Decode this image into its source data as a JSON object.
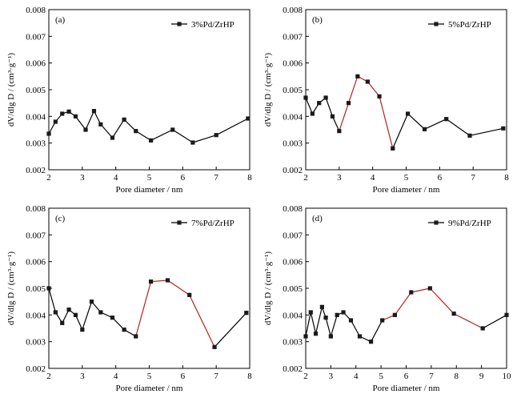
{
  "chart_data": [
    {
      "type": "line",
      "panel_label": "(a)",
      "xlabel": "Pore diameter / nm",
      "ylabel": "dV/dlg D / (cm³·g⁻¹)",
      "xlim": [
        2,
        8
      ],
      "ylim": [
        0.002,
        0.008
      ],
      "xticks": [
        2,
        3,
        4,
        5,
        6,
        7,
        8
      ],
      "yticks": [
        "0.002",
        "0.003",
        "0.004",
        "0.005",
        "0.006",
        "0.007",
        "0.008"
      ],
      "legend_position": "top-right",
      "series": [
        {
          "name": "3%Pd/ZrHP",
          "x": [
            2.0,
            2.2,
            2.4,
            2.6,
            2.8,
            3.1,
            3.35,
            3.55,
            3.9,
            4.25,
            4.6,
            5.05,
            5.7,
            6.3,
            7.0,
            7.95
          ],
          "y": [
            0.00335,
            0.0038,
            0.0041,
            0.00418,
            0.004,
            0.0035,
            0.0042,
            0.0037,
            0.0032,
            0.00388,
            0.00345,
            0.0031,
            0.0035,
            0.00302,
            0.0033,
            0.00392
          ],
          "highlight_x": []
        }
      ]
    },
    {
      "type": "line",
      "panel_label": "(b)",
      "xlabel": "Pore diameter / nm",
      "ylabel": "dV/dlg D / (cm³·g⁻¹)",
      "xlim": [
        2,
        8
      ],
      "ylim": [
        0.002,
        0.008
      ],
      "xticks": [
        2,
        3,
        4,
        5,
        6,
        7,
        8
      ],
      "yticks": [
        "0.002",
        "0.003",
        "0.004",
        "0.005",
        "0.006",
        "0.007",
        "0.008"
      ],
      "legend_position": "top-right",
      "series": [
        {
          "name": "5%Pd/ZrHP",
          "x": [
            2.0,
            2.2,
            2.4,
            2.6,
            2.8,
            3.0,
            3.28,
            3.55,
            3.85,
            4.2,
            4.6,
            5.05,
            5.55,
            6.2,
            6.9,
            7.9
          ],
          "y": [
            0.0047,
            0.0041,
            0.0045,
            0.0047,
            0.004,
            0.00345,
            0.0045,
            0.0055,
            0.0053,
            0.00475,
            0.0028,
            0.0041,
            0.00352,
            0.0039,
            0.00328,
            0.00355
          ],
          "highlight_x": [
            3.0,
            4.6
          ]
        }
      ]
    },
    {
      "type": "line",
      "panel_label": "(c)",
      "xlabel": "Pore diameter / nm",
      "ylabel": "dV/dlg D / (cm³·g⁻¹)",
      "xlim": [
        2,
        8
      ],
      "ylim": [
        0.002,
        0.008
      ],
      "xticks": [
        2,
        3,
        4,
        5,
        6,
        7,
        8
      ],
      "yticks": [
        "0.002",
        "0.003",
        "0.004",
        "0.005",
        "0.006",
        "0.007",
        "0.008"
      ],
      "legend_position": "top-right",
      "series": [
        {
          "name": "7%Pd/ZrHP",
          "x": [
            2.0,
            2.2,
            2.4,
            2.6,
            2.8,
            3.0,
            3.28,
            3.55,
            3.9,
            4.25,
            4.6,
            5.05,
            5.55,
            6.2,
            6.95,
            7.9
          ],
          "y": [
            0.005,
            0.0041,
            0.0037,
            0.0042,
            0.004,
            0.00345,
            0.0045,
            0.0041,
            0.0039,
            0.00345,
            0.0032,
            0.00525,
            0.0053,
            0.00475,
            0.0028,
            0.00408
          ],
          "highlight_x": [
            4.6,
            6.95
          ]
        }
      ]
    },
    {
      "type": "line",
      "panel_label": "(d)",
      "xlabel": "Pore diameter / nm",
      "ylabel": "dV/dlg D / (cm³·g⁻¹)",
      "xlim": [
        2,
        10
      ],
      "ylim": [
        0.002,
        0.008
      ],
      "xticks": [
        2,
        3,
        4,
        5,
        6,
        7,
        8,
        9,
        10
      ],
      "yticks": [
        "0.002",
        "0.003",
        "0.004",
        "0.005",
        "0.006",
        "0.007",
        "0.008"
      ],
      "legend_position": "top-right",
      "series": [
        {
          "name": "9%Pd/ZrHP",
          "x": [
            2.0,
            2.2,
            2.4,
            2.65,
            2.8,
            3.0,
            3.25,
            3.5,
            3.8,
            4.15,
            4.6,
            5.05,
            5.55,
            6.2,
            6.95,
            7.9,
            9.05,
            10.0
          ],
          "y": [
            0.0032,
            0.0041,
            0.0033,
            0.0043,
            0.0039,
            0.0032,
            0.004,
            0.0041,
            0.0038,
            0.0032,
            0.003,
            0.0038,
            0.004,
            0.00485,
            0.005,
            0.00405,
            0.0035,
            0.004
          ],
          "highlight_x": [
            5.05,
            9.05
          ]
        }
      ]
    }
  ]
}
